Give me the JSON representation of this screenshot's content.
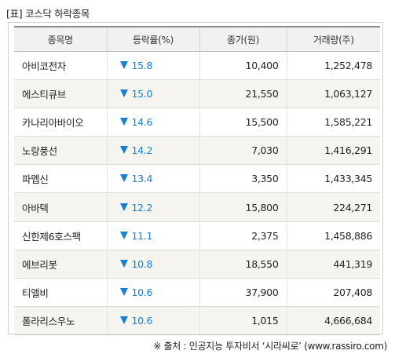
{
  "title": "[표] 코스닥 하락종목",
  "table": {
    "headers": [
      "종목명",
      "등락률(%)",
      "종가(원)",
      "거래량(주)"
    ],
    "rows": [
      {
        "name": "아비코전자",
        "change": "15.8",
        "price": "10,400",
        "volume": "1,252,478"
      },
      {
        "name": "에스티큐브",
        "change": "15.0",
        "price": "21,550",
        "volume": "1,063,127"
      },
      {
        "name": "카나리아바이오",
        "change": "14.6",
        "price": "15,500",
        "volume": "1,585,221"
      },
      {
        "name": "노랑풍선",
        "change": "14.2",
        "price": "7,030",
        "volume": "1,416,291"
      },
      {
        "name": "파멥신",
        "change": "13.4",
        "price": "3,350",
        "volume": "1,433,345"
      },
      {
        "name": "아바텍",
        "change": "12.2",
        "price": "15,800",
        "volume": "224,271"
      },
      {
        "name": "신한제6호스팩",
        "change": "11.1",
        "price": "2,375",
        "volume": "1,458,886"
      },
      {
        "name": "에브리봇",
        "change": "10.8",
        "price": "18,550",
        "volume": "441,319"
      },
      {
        "name": "티엘비",
        "change": "10.6",
        "price": "37,900",
        "volume": "207,408"
      },
      {
        "name": "폴라리스우노",
        "change": "10.6",
        "price": "1,015",
        "volume": "4,666,684"
      }
    ]
  },
  "change_direction_icon": "down-triangle-icon",
  "colors": {
    "down": "#1a7fd0",
    "header_bg": "#f1f1f1",
    "stripe_bg": "#f6f4ee"
  },
  "source": "※ 출처 : 인공지능 투자비서 ‘시라씨로’ (www.rassiro.com)"
}
